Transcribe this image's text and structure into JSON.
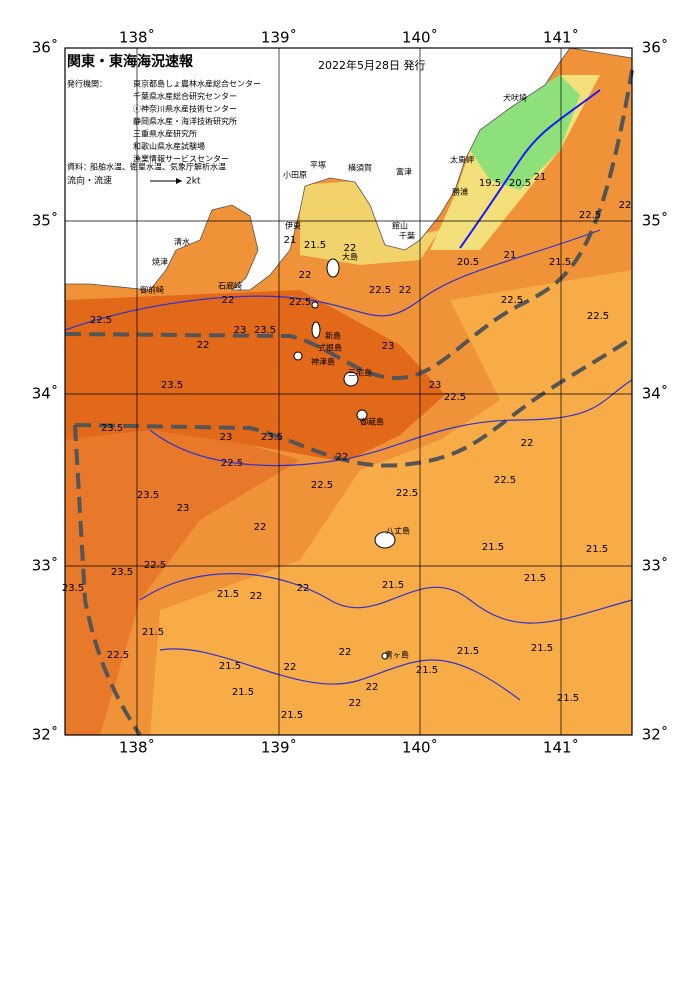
{
  "header": {
    "title": "関東・東海海況速報",
    "issued": "2022年5月28日 発行"
  },
  "issuers": {
    "label": "発行機関：",
    "items": [
      "東京都島しょ農林水産総合センター",
      "千葉県水産総合研究センター",
      "ⓒ神奈川県水産技術センター",
      "静岡県水産・海洋技術研究所",
      "三重県水産研究所",
      "和歌山県水産試験場",
      "漁業情報サービスセンター"
    ]
  },
  "sources": {
    "label": "資料：",
    "text": "船舶水温、衛星水温、気象庁解析水温"
  },
  "flow": {
    "label": "流向・流速",
    "scale": "2kt"
  },
  "longitudes": [
    "138˚",
    "139˚",
    "140˚",
    "141˚"
  ],
  "latitudes": [
    "36˚",
    "35˚",
    "34˚",
    "33˚",
    "32˚"
  ],
  "places": [
    "大島",
    "新島",
    "式根島",
    "神津島",
    "三宅島",
    "御蔵島",
    "八丈島",
    "青ヶ島",
    "小田原",
    "平塚",
    "横須賀",
    "富津",
    "館山",
    "千葉",
    "太東岬",
    "勝浦",
    "犬吠埼",
    "伊東",
    "石廊崎",
    "清水",
    "焼津",
    "御前崎"
  ],
  "isotherms": [
    22.5,
    22,
    23.5,
    23.5,
    23,
    23.5,
    22.5,
    22,
    22.5,
    22.5,
    23,
    23.5,
    22,
    22.5,
    23.5,
    23.5,
    22.5,
    21.5,
    21.5,
    22,
    22,
    21.5,
    21.5,
    21.5,
    22,
    22,
    22,
    22,
    21.5,
    21.5,
    21.5,
    21.5,
    21.5,
    21.5,
    21.5,
    21.5,
    22.5,
    22,
    22.5,
    23,
    23,
    22,
    22.5,
    22,
    20.5,
    21,
    19.5,
    20.5,
    21,
    21.5,
    22.5,
    22,
    22.5,
    22.5,
    21.5,
    21,
    22,
    22,
    23,
    23.5,
    22.5
  ]
}
